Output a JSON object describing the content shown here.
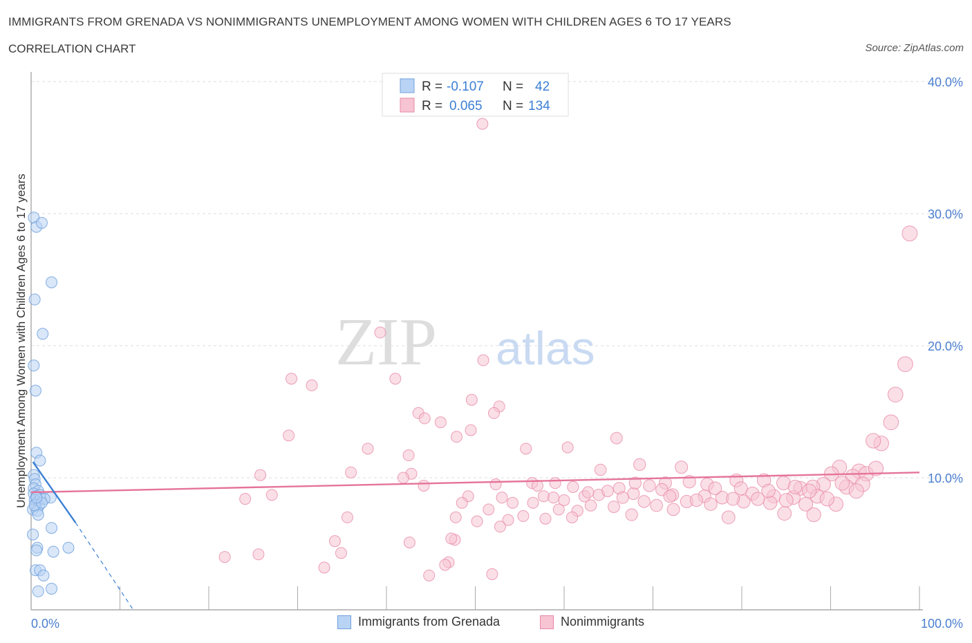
{
  "header": {
    "title": "IMMIGRANTS FROM GRENADA VS NONIMMIGRANTS UNEMPLOYMENT AMONG WOMEN WITH CHILDREN AGES 6 TO 17 YEARS",
    "subtitle": "CORRELATION CHART",
    "source": "Source: ZipAtlas.com"
  },
  "watermark": {
    "zip": "ZIP",
    "atlas": "atlas"
  },
  "colors": {
    "blue": "#6fa0dc",
    "blue_fill": "#b9d3f4",
    "blue_line": "#3b7fd4",
    "pink": "#e888a8",
    "pink_fill": "#f6c4d3",
    "pink_line": "#e5739a",
    "axis_label": "#4a7fcf"
  },
  "legend_top": {
    "rows": [
      {
        "r_label": "R = ",
        "r_value": "-0.107",
        "n_label": "N = ",
        "n_value": "42"
      },
      {
        "r_label": "R = ",
        "r_value": "0.065",
        "n_label": "N = ",
        "n_value": "134"
      }
    ]
  },
  "legend_bottom": {
    "items": [
      {
        "label": "Immigrants from Grenada"
      },
      {
        "label": "Nonimmigrants"
      }
    ]
  },
  "chart_data": {
    "type": "scatter",
    "title": "IMMIGRANTS FROM GRENADA VS NONIMMIGRANTS UNEMPLOYMENT AMONG WOMEN WITH CHILDREN AGES 6 TO 17 YEARS",
    "xlabel": "",
    "ylabel": "Unemployment Among Women with Children Ages 6 to 17 years",
    "xlim": [
      0,
      100
    ],
    "ylim": [
      0,
      40
    ],
    "x_tick_labels": [
      "0.0%",
      "100.0%"
    ],
    "y_ticks": [
      10,
      20,
      30,
      40
    ],
    "y_tick_labels": [
      "10.0%",
      "20.0%",
      "30.0%",
      "40.0%"
    ],
    "grid": true,
    "legend": "top-center",
    "series": [
      {
        "name": "Immigrants from Grenada",
        "R": -0.107,
        "N": 42,
        "trend": {
          "x": [
            0.2,
            5.0
          ],
          "y": [
            11.2,
            6.6
          ]
        },
        "trend_extension": {
          "x": [
            5.0,
            11.5
          ],
          "y": [
            6.6,
            0
          ]
        },
        "points": [
          [
            0.3,
            29.7
          ],
          [
            0.6,
            29.0
          ],
          [
            1.2,
            29.3
          ],
          [
            0.4,
            23.5
          ],
          [
            2.3,
            24.8
          ],
          [
            1.3,
            20.9
          ],
          [
            0.3,
            18.5
          ],
          [
            0.5,
            16.6
          ],
          [
            0.6,
            11.9
          ],
          [
            1.0,
            11.3
          ],
          [
            0.3,
            10.2
          ],
          [
            0.4,
            9.9
          ],
          [
            0.5,
            9.5
          ],
          [
            0.3,
            9.2
          ],
          [
            0.8,
            9.0
          ],
          [
            0.3,
            8.8
          ],
          [
            0.6,
            8.6
          ],
          [
            1.0,
            8.7
          ],
          [
            0.4,
            8.3
          ],
          [
            0.7,
            8.2
          ],
          [
            1.1,
            8.4
          ],
          [
            0.5,
            8.0
          ],
          [
            0.9,
            7.9
          ],
          [
            0.2,
            7.6
          ],
          [
            0.7,
            7.5
          ],
          [
            2.2,
            8.5
          ],
          [
            1.5,
            8.4
          ],
          [
            0.8,
            7.2
          ],
          [
            0.2,
            5.7
          ],
          [
            2.3,
            6.2
          ],
          [
            0.7,
            4.7
          ],
          [
            0.6,
            4.5
          ],
          [
            2.5,
            4.4
          ],
          [
            4.2,
            4.7
          ],
          [
            0.5,
            3.0
          ],
          [
            1.0,
            3.0
          ],
          [
            1.4,
            2.6
          ],
          [
            0.8,
            1.4
          ],
          [
            2.3,
            1.6
          ],
          [
            0.4,
            7.9
          ],
          [
            1.2,
            8.1
          ],
          [
            0.6,
            8.5
          ]
        ]
      },
      {
        "name": "Nonimmigrants",
        "R": 0.065,
        "N": 134,
        "trend": {
          "x": [
            0,
            100
          ],
          "y": [
            8.9,
            10.4
          ]
        },
        "points": [
          [
            50.8,
            36.8
          ],
          [
            98.9,
            28.5
          ],
          [
            39.3,
            21.0
          ],
          [
            50.9,
            18.9
          ],
          [
            98.4,
            18.6
          ],
          [
            29.3,
            17.5
          ],
          [
            31.6,
            17.0
          ],
          [
            41.0,
            17.5
          ],
          [
            97.3,
            16.3
          ],
          [
            49.6,
            15.9
          ],
          [
            52.7,
            15.4
          ],
          [
            43.6,
            14.9
          ],
          [
            46.1,
            14.2
          ],
          [
            96.8,
            14.2
          ],
          [
            52.1,
            14.9
          ],
          [
            44.3,
            14.5
          ],
          [
            29.0,
            13.2
          ],
          [
            47.9,
            13.1
          ],
          [
            49.5,
            13.6
          ],
          [
            65.9,
            13.0
          ],
          [
            95.7,
            12.6
          ],
          [
            94.8,
            12.8
          ],
          [
            37.9,
            12.2
          ],
          [
            55.7,
            12.2
          ],
          [
            60.4,
            12.3
          ],
          [
            42.5,
            11.7
          ],
          [
            68.5,
            11.0
          ],
          [
            73.2,
            10.8
          ],
          [
            91.0,
            10.8
          ],
          [
            64.1,
            10.6
          ],
          [
            93.2,
            10.5
          ],
          [
            25.8,
            10.2
          ],
          [
            36.0,
            10.4
          ],
          [
            42.8,
            10.3
          ],
          [
            90.1,
            10.3
          ],
          [
            92.5,
            10.1
          ],
          [
            94.0,
            10.3
          ],
          [
            41.9,
            10.0
          ],
          [
            56.4,
            9.6
          ],
          [
            59.0,
            9.6
          ],
          [
            71.4,
            9.6
          ],
          [
            74.1,
            9.7
          ],
          [
            76.1,
            9.5
          ],
          [
            79.4,
            9.8
          ],
          [
            82.5,
            9.8
          ],
          [
            84.7,
            9.6
          ],
          [
            89.2,
            9.5
          ],
          [
            91.8,
            9.3
          ],
          [
            44.2,
            9.4
          ],
          [
            52.3,
            9.5
          ],
          [
            61.0,
            9.3
          ],
          [
            66.2,
            9.2
          ],
          [
            69.6,
            9.4
          ],
          [
            86.6,
            9.2
          ],
          [
            88.0,
            9.3
          ],
          [
            24.1,
            8.4
          ],
          [
            27.1,
            8.7
          ],
          [
            49.2,
            8.6
          ],
          [
            53.0,
            8.5
          ],
          [
            57.7,
            8.6
          ],
          [
            62.3,
            8.6
          ],
          [
            63.9,
            8.7
          ],
          [
            67.8,
            8.8
          ],
          [
            72.2,
            8.7
          ],
          [
            75.8,
            8.6
          ],
          [
            77.8,
            8.5
          ],
          [
            81.2,
            8.8
          ],
          [
            83.6,
            8.6
          ],
          [
            85.8,
            8.5
          ],
          [
            88.5,
            8.6
          ],
          [
            48.5,
            8.1
          ],
          [
            51.5,
            7.6
          ],
          [
            56.5,
            8.1
          ],
          [
            59.4,
            7.6
          ],
          [
            63.0,
            7.9
          ],
          [
            65.6,
            7.8
          ],
          [
            70.4,
            7.9
          ],
          [
            73.8,
            8.2
          ],
          [
            76.5,
            8.0
          ],
          [
            80.2,
            8.2
          ],
          [
            83.2,
            8.1
          ],
          [
            87.2,
            8.0
          ],
          [
            90.6,
            8.0
          ],
          [
            35.6,
            7.0
          ],
          [
            47.8,
            7.0
          ],
          [
            55.4,
            7.1
          ],
          [
            57.9,
            6.9
          ],
          [
            61.5,
            7.5
          ],
          [
            67.6,
            7.2
          ],
          [
            72.3,
            7.6
          ],
          [
            78.5,
            7.0
          ],
          [
            84.8,
            7.3
          ],
          [
            88.1,
            7.2
          ],
          [
            53.7,
            6.8
          ],
          [
            60.9,
            7.0
          ],
          [
            47.7,
            5.3
          ],
          [
            47.3,
            5.4
          ],
          [
            34.2,
            5.2
          ],
          [
            42.6,
            5.1
          ],
          [
            34.9,
            4.3
          ],
          [
            21.8,
            4.0
          ],
          [
            25.6,
            4.2
          ],
          [
            33.0,
            3.2
          ],
          [
            47.0,
            3.6
          ],
          [
            46.6,
            3.4
          ],
          [
            44.8,
            2.6
          ],
          [
            51.9,
            2.7
          ],
          [
            58.8,
            8.5
          ],
          [
            64.9,
            9.0
          ],
          [
            71.0,
            9.1
          ],
          [
            79.9,
            9.2
          ],
          [
            86.0,
            9.3
          ],
          [
            91.3,
            9.6
          ],
          [
            93.6,
            9.5
          ],
          [
            83.0,
            9.0
          ],
          [
            95.1,
            10.7
          ],
          [
            92.9,
            9.0
          ],
          [
            89.6,
            8.4
          ],
          [
            69.0,
            8.2
          ],
          [
            62.7,
            8.9
          ],
          [
            77.0,
            9.2
          ],
          [
            81.8,
            8.4
          ],
          [
            66.6,
            8.5
          ],
          [
            74.9,
            8.3
          ],
          [
            60.0,
            8.3
          ],
          [
            54.2,
            8.1
          ],
          [
            85.0,
            8.3
          ],
          [
            52.8,
            6.3
          ],
          [
            50.2,
            6.7
          ],
          [
            71.9,
            8.6
          ],
          [
            79.0,
            8.4
          ],
          [
            87.6,
            9.0
          ],
          [
            57.0,
            9.4
          ],
          [
            68.0,
            9.6
          ]
        ]
      }
    ]
  }
}
